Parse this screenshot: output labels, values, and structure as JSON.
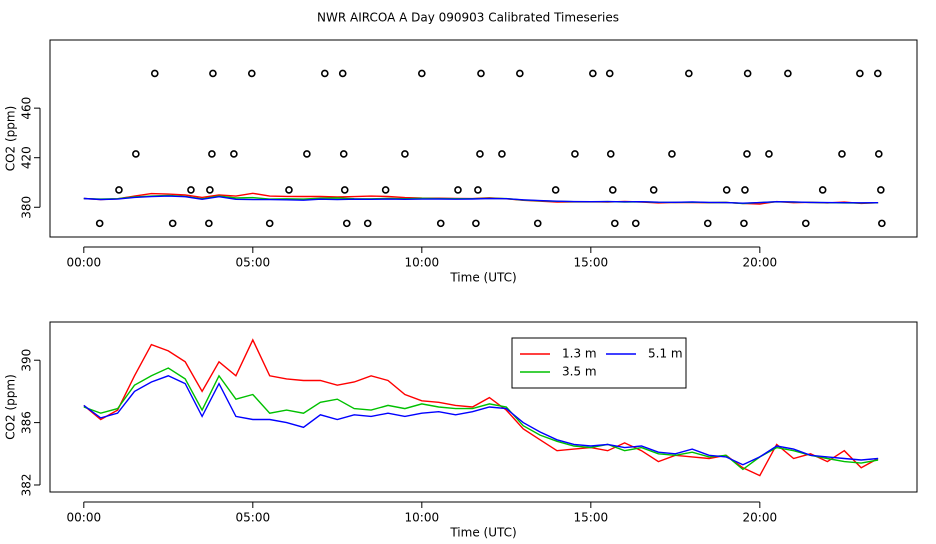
{
  "title": "NWR AIRCOA A  Day 090903  Calibrated Timeseries",
  "chart_data": [
    {
      "type": "line",
      "xlabel": "Time (UTC)",
      "ylabel": "CO2 (ppm)",
      "xlim": [
        -1.0,
        24.65
      ],
      "xticks": [
        {
          "value": 0,
          "label": "00:00"
        },
        {
          "value": 5,
          "label": "05:00"
        },
        {
          "value": 10,
          "label": "10:00"
        },
        {
          "value": 15,
          "label": "15:00"
        },
        {
          "value": 20,
          "label": "20:00"
        }
      ],
      "ylim": [
        356,
        515
      ],
      "yticks": [
        380,
        420,
        460
      ],
      "x": [
        0,
        0.5,
        1,
        1.5,
        2,
        2.5,
        3,
        3.5,
        4,
        4.5,
        5,
        5.5,
        6,
        6.5,
        7,
        7.5,
        8,
        8.5,
        9,
        9.5,
        10,
        10.5,
        11,
        11.5,
        12,
        12.5,
        13,
        13.5,
        14,
        14.5,
        15,
        15.5,
        16,
        16.5,
        17,
        17.5,
        18,
        18.5,
        19,
        19.5,
        20,
        20.5,
        21,
        21.5,
        22,
        22.5,
        23,
        23.5
      ],
      "series": [
        {
          "type": "line",
          "color": "#ff0000",
          "values": [
            387.1,
            386.2,
            386.8,
            389.0,
            391.0,
            390.6,
            389.9,
            388.0,
            389.9,
            389.0,
            391.3,
            389.0,
            388.8,
            388.7,
            388.7,
            388.4,
            388.6,
            389.0,
            388.7,
            387.8,
            387.4,
            387.3,
            387.1,
            387.0,
            387.6,
            386.8,
            385.6,
            384.9,
            384.2,
            384.3,
            384.4,
            384.2,
            384.7,
            384.2,
            383.5,
            383.9,
            383.8,
            383.7,
            383.9,
            383.1,
            382.6,
            384.6,
            383.7,
            384.0,
            383.5,
            384.2,
            383.1,
            383.7
          ]
        },
        {
          "type": "line",
          "color": "#00c000",
          "values": [
            387.0,
            386.6,
            386.9,
            388.4,
            389.0,
            389.5,
            388.8,
            386.8,
            389.0,
            387.5,
            387.8,
            386.6,
            386.8,
            386.6,
            387.3,
            387.5,
            386.9,
            386.8,
            387.1,
            386.9,
            387.2,
            387.0,
            386.9,
            386.9,
            387.2,
            387.0,
            385.8,
            385.2,
            384.8,
            384.5,
            384.4,
            384.6,
            384.2,
            384.4,
            384.0,
            383.9,
            384.1,
            383.8,
            383.9,
            383.0,
            383.8,
            384.4,
            384.2,
            383.9,
            383.7,
            383.5,
            383.4,
            383.6
          ]
        },
        {
          "type": "line",
          "color": "#0000ff",
          "values": [
            387.1,
            386.3,
            386.6,
            388.0,
            388.6,
            389.0,
            388.5,
            386.4,
            388.5,
            386.4,
            386.2,
            386.2,
            386.0,
            385.7,
            386.5,
            386.2,
            386.5,
            386.4,
            386.6,
            386.4,
            386.6,
            386.7,
            386.5,
            386.7,
            387.0,
            386.9,
            386.0,
            385.4,
            384.9,
            384.6,
            384.5,
            384.6,
            384.4,
            384.5,
            384.1,
            384.0,
            384.3,
            383.9,
            383.8,
            383.3,
            383.8,
            384.5,
            384.3,
            383.9,
            383.8,
            383.7,
            383.6,
            383.7
          ]
        },
        {
          "type": "scatter",
          "color": "#000000",
          "x": [
            2.1,
            3.82,
            4.97,
            7.13,
            7.66,
            10.0,
            11.75,
            12.9,
            15.06,
            15.56,
            17.9,
            19.64,
            20.83,
            22.96,
            23.49,
            1.54,
            3.79,
            4.44,
            6.6,
            7.69,
            9.5,
            11.72,
            12.37,
            14.53,
            15.59,
            17.4,
            19.62,
            20.27,
            22.43,
            23.52,
            1.04,
            3.17,
            3.73,
            6.07,
            7.72,
            8.93,
            11.07,
            11.66,
            13.96,
            15.65,
            16.86,
            19.02,
            19.56,
            21.86,
            23.58,
            0.47,
            2.63,
            3.7,
            5.5,
            7.78,
            8.4,
            10.56,
            11.6,
            13.43,
            15.71,
            16.33,
            18.46,
            19.53,
            21.36,
            23.61
          ],
          "values": [
            488,
            488,
            488,
            488,
            488,
            488,
            488,
            488,
            488,
            488,
            488,
            488,
            488,
            488,
            488,
            423,
            423,
            423,
            423,
            423,
            423,
            423,
            423,
            423,
            423,
            423,
            423,
            423,
            423,
            423,
            394,
            394,
            394,
            394,
            394,
            394,
            394,
            394,
            394,
            394,
            394,
            394,
            394,
            394,
            394,
            367,
            367,
            367,
            367,
            367,
            367,
            367,
            367,
            367,
            367,
            367,
            367,
            367,
            367,
            367
          ]
        }
      ]
    },
    {
      "type": "line",
      "xlabel": "Time (UTC)",
      "ylabel": "CO2 (ppm)",
      "xlim": [
        -1.0,
        24.65
      ],
      "xticks": [
        {
          "value": 0,
          "label": "00:00"
        },
        {
          "value": 5,
          "label": "05:00"
        },
        {
          "value": 10,
          "label": "10:00"
        },
        {
          "value": 15,
          "label": "15:00"
        },
        {
          "value": 20,
          "label": "20:00"
        }
      ],
      "ylim": [
        381.55,
        392.45
      ],
      "yticks": [
        382,
        386,
        390
      ],
      "legend": "top",
      "x": [
        0,
        0.5,
        1,
        1.5,
        2,
        2.5,
        3,
        3.5,
        4,
        4.5,
        5,
        5.5,
        6,
        6.5,
        7,
        7.5,
        8,
        8.5,
        9,
        9.5,
        10,
        10.5,
        11,
        11.5,
        12,
        12.5,
        13,
        13.5,
        14,
        14.5,
        15,
        15.5,
        16,
        16.5,
        17,
        17.5,
        18,
        18.5,
        19,
        19.5,
        20,
        20.5,
        21,
        21.5,
        22,
        22.5,
        23,
        23.5
      ],
      "series": [
        {
          "type": "line",
          "name": "1.3 m",
          "color": "#ff0000",
          "values": [
            387.1,
            386.2,
            386.8,
            389.0,
            391.0,
            390.6,
            389.9,
            388.0,
            389.9,
            389.0,
            391.3,
            389.0,
            388.8,
            388.7,
            388.7,
            388.4,
            388.6,
            389.0,
            388.7,
            387.8,
            387.4,
            387.3,
            387.1,
            387.0,
            387.6,
            386.8,
            385.6,
            384.9,
            384.2,
            384.3,
            384.4,
            384.2,
            384.7,
            384.2,
            383.5,
            383.9,
            383.8,
            383.7,
            383.9,
            383.1,
            382.6,
            384.6,
            383.7,
            384.0,
            383.5,
            384.2,
            383.1,
            383.7
          ]
        },
        {
          "type": "line",
          "name": "3.5 m",
          "color": "#00c000",
          "values": [
            387.0,
            386.6,
            386.9,
            388.4,
            389.0,
            389.5,
            388.8,
            386.8,
            389.0,
            387.5,
            387.8,
            386.6,
            386.8,
            386.6,
            387.3,
            387.5,
            386.9,
            386.8,
            387.1,
            386.9,
            387.2,
            387.0,
            386.9,
            386.9,
            387.2,
            387.0,
            385.8,
            385.2,
            384.8,
            384.5,
            384.4,
            384.6,
            384.2,
            384.4,
            384.0,
            383.9,
            384.1,
            383.8,
            383.9,
            383.0,
            383.8,
            384.4,
            384.2,
            383.9,
            383.7,
            383.5,
            383.4,
            383.6
          ]
        },
        {
          "type": "line",
          "name": "5.1 m",
          "color": "#0000ff",
          "values": [
            387.1,
            386.3,
            386.6,
            388.0,
            388.6,
            389.0,
            388.5,
            386.4,
            388.5,
            386.4,
            386.2,
            386.2,
            386.0,
            385.7,
            386.5,
            386.2,
            386.5,
            386.4,
            386.6,
            386.4,
            386.6,
            386.7,
            386.5,
            386.7,
            387.0,
            386.9,
            386.0,
            385.4,
            384.9,
            384.6,
            384.5,
            384.6,
            384.4,
            384.5,
            384.1,
            384.0,
            384.3,
            383.9,
            383.8,
            383.3,
            383.8,
            384.5,
            384.3,
            383.9,
            383.8,
            383.7,
            383.6,
            383.7
          ]
        }
      ]
    }
  ]
}
